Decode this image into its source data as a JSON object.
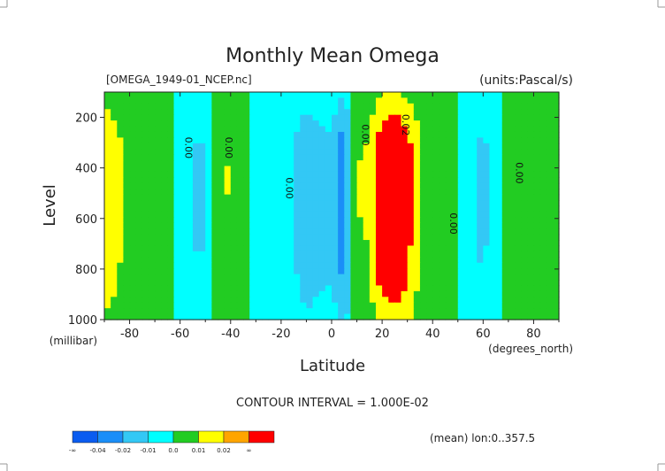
{
  "page": {
    "title": "Monthly Mean Omega",
    "file_label": "[OMEGA_1949-01_NCEP.nc]",
    "units_label": "(units:Pascal/s)",
    "contour_interval": "CONTOUR INTERVAL = 1.000E-02",
    "footer_note": "(mean) lon:0..357.5"
  },
  "colors": {
    "background": "#ffffff",
    "frame": "#222222"
  },
  "chart_data": {
    "type": "heatmap",
    "subtype": "filled-contour",
    "title": "Monthly Mean Omega",
    "xlabel": "Latitude",
    "x_unit_label": "(degrees_north)",
    "ylabel": "Level",
    "y_unit_label": "(millibar)",
    "xlim": [
      -90,
      90
    ],
    "ylim": [
      1000,
      100
    ],
    "x_ticks": [
      -80,
      -60,
      -40,
      -20,
      0,
      20,
      40,
      60,
      80
    ],
    "x_tick_labels": [
      "-80",
      "-60",
      "-40",
      "-20",
      "0",
      "20",
      "40",
      "60",
      "80"
    ],
    "y_ticks": [
      200,
      400,
      600,
      800,
      1000
    ],
    "y_tick_labels": [
      "200",
      "400",
      "600",
      "800",
      "1000"
    ],
    "lat": [
      -90,
      -85,
      -80,
      -75,
      -70,
      -65,
      -60,
      -55,
      -50,
      -45,
      -40,
      -35,
      -30,
      -25,
      -20,
      -15,
      -10,
      -5,
      0,
      5,
      10,
      15,
      20,
      25,
      30,
      35,
      40,
      45,
      50,
      55,
      60,
      65,
      70,
      75,
      80,
      85,
      90
    ],
    "levels": [
      100,
      150,
      200,
      250,
      300,
      400,
      500,
      600,
      700,
      850,
      925,
      1000
    ],
    "omega_profile_by_lat": [
      0.02,
      0.015,
      0.005,
      0.005,
      0.005,
      0.002,
      -0.003,
      -0.012,
      -0.012,
      0.004,
      0.012,
      0.002,
      -0.002,
      -0.002,
      -0.003,
      -0.011,
      -0.019,
      -0.015,
      -0.013,
      -0.03,
      0.01,
      0.012,
      0.032,
      0.035,
      0.028,
      0.011,
      0.003,
      0.002,
      0.002,
      -0.008,
      -0.014,
      -0.005,
      0.002,
      0.004,
      0.006,
      0.003,
      0.003
    ],
    "vertical_shape": [
      0.3,
      0.45,
      0.6,
      0.75,
      0.85,
      1.0,
      1.0,
      0.95,
      0.85,
      0.75,
      0.6,
      0.45
    ],
    "contour_levels": [
      -0.04,
      -0.02,
      -0.01,
      0.0,
      0.01,
      0.02
    ],
    "contour_labels": [
      {
        "text": "0.00",
        "lat": -58,
        "level": 320
      },
      {
        "text": "0.00",
        "lat": -42,
        "level": 320
      },
      {
        "text": "0.00",
        "lat": -18,
        "level": 480
      },
      {
        "text": "0.00",
        "lat": 12,
        "level": 270
      },
      {
        "text": "0.02",
        "lat": 28,
        "level": 230
      },
      {
        "text": "0.00",
        "lat": 47,
        "level": 620
      },
      {
        "text": "0.00",
        "lat": 73,
        "level": 420
      }
    ],
    "colorbar": {
      "bins": [
        {
          "color": "#0a5cf0"
        },
        {
          "color": "#1a8ef8"
        },
        {
          "color": "#33c8f5"
        },
        {
          "color": "#00ffff"
        },
        {
          "color": "#22cc22"
        },
        {
          "color": "#ffff00"
        },
        {
          "color": "#ffa500"
        },
        {
          "color": "#ff0000"
        }
      ],
      "tick_labels": [
        "-∞",
        "-0.04",
        "-0.02",
        "-0.01",
        "0.0",
        "0.01",
        "0.02",
        "∞"
      ]
    }
  }
}
